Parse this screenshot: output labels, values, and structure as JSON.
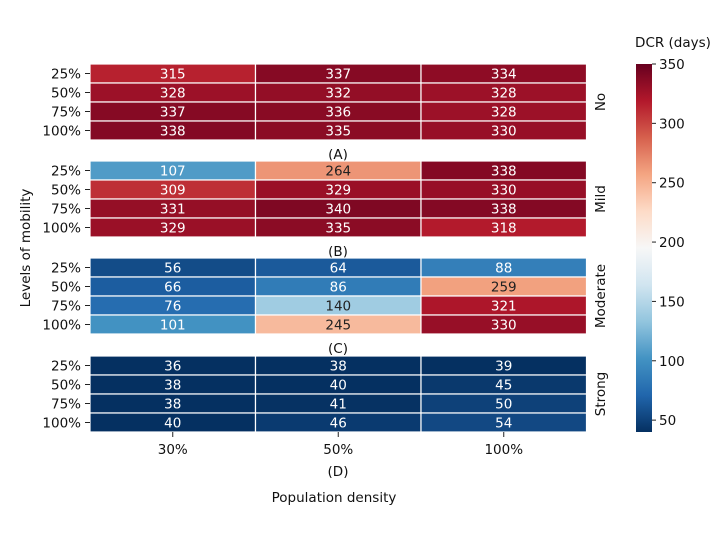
{
  "chart_data": {
    "type": "heatmap",
    "xlabel": "Population density",
    "ylabel": "Levels of mobility",
    "x_categories": [
      "30%",
      "50%",
      "100%"
    ],
    "y_categories": [
      "25%",
      "50%",
      "75%",
      "100%"
    ],
    "colorbar": {
      "label": "DCR (days)",
      "colormap": "RdBu_r",
      "range": [
        40,
        350
      ],
      "ticks": [
        50,
        100,
        150,
        200,
        250,
        300,
        350
      ]
    },
    "panels": [
      {
        "caption": "(A)",
        "row_label": "No",
        "values": [
          [
            315,
            337,
            334
          ],
          [
            328,
            332,
            328
          ],
          [
            337,
            336,
            328
          ],
          [
            338,
            335,
            330
          ]
        ]
      },
      {
        "caption": "(B)",
        "row_label": "Mild",
        "values": [
          [
            107,
            264,
            338
          ],
          [
            309,
            329,
            330
          ],
          [
            331,
            340,
            338
          ],
          [
            329,
            335,
            318
          ]
        ]
      },
      {
        "caption": "(C)",
        "row_label": "Moderate",
        "values": [
          [
            56,
            64,
            88
          ],
          [
            66,
            86,
            259
          ],
          [
            76,
            140,
            321
          ],
          [
            101,
            245,
            330
          ]
        ]
      },
      {
        "caption": "(D)",
        "row_label": "Strong",
        "values": [
          [
            36,
            38,
            39
          ],
          [
            38,
            40,
            45
          ],
          [
            38,
            41,
            50
          ],
          [
            40,
            46,
            54
          ]
        ]
      }
    ]
  }
}
